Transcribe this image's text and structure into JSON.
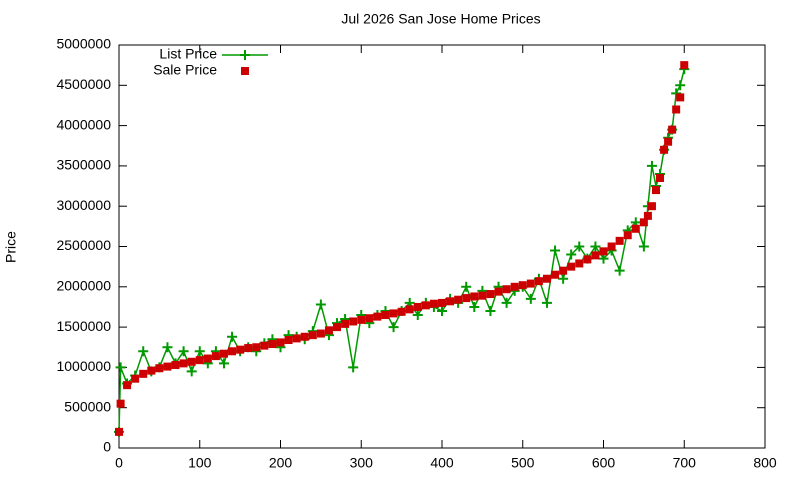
{
  "chart_data": {
    "type": "line",
    "title": "Jul 2026 San Jose Home Prices",
    "y_label": "Price",
    "x": [
      0,
      2,
      10,
      20,
      30,
      40,
      50,
      60,
      70,
      80,
      90,
      100,
      110,
      120,
      130,
      140,
      150,
      160,
      170,
      180,
      190,
      200,
      210,
      220,
      230,
      240,
      250,
      260,
      270,
      280,
      290,
      300,
      310,
      320,
      330,
      340,
      350,
      360,
      370,
      380,
      390,
      400,
      410,
      420,
      430,
      440,
      450,
      460,
      470,
      480,
      490,
      500,
      510,
      520,
      530,
      540,
      550,
      560,
      570,
      580,
      590,
      600,
      610,
      620,
      630,
      640,
      650,
      655,
      660,
      665,
      670,
      675,
      680,
      685,
      690,
      695,
      700
    ],
    "series": [
      {
        "name": "List Price",
        "color": "#009900",
        "marker": "plus",
        "values": [
          200000,
          1000000,
          800000,
          900000,
          1200000,
          950000,
          1000000,
          1250000,
          1050000,
          1200000,
          950000,
          1200000,
          1050000,
          1200000,
          1050000,
          1380000,
          1200000,
          1250000,
          1200000,
          1300000,
          1350000,
          1250000,
          1400000,
          1380000,
          1350000,
          1450000,
          1780000,
          1400000,
          1550000,
          1600000,
          1000000,
          1650000,
          1550000,
          1650000,
          1700000,
          1500000,
          1700000,
          1800000,
          1650000,
          1800000,
          1750000,
          1700000,
          1850000,
          1800000,
          2000000,
          1750000,
          1950000,
          1700000,
          2000000,
          1800000,
          1950000,
          2000000,
          1850000,
          2100000,
          1800000,
          2450000,
          2100000,
          2400000,
          2500000,
          2350000,
          2500000,
          2350000,
          2450000,
          2200000,
          2700000,
          2800000,
          2500000,
          3000000,
          3500000,
          3250000,
          3400000,
          3700000,
          3850000,
          3950000,
          4400000,
          4500000,
          4700000
        ]
      },
      {
        "name": "Sale Price",
        "color": "#cc0000",
        "marker": "square",
        "values": [
          200000,
          550000,
          780000,
          860000,
          920000,
          960000,
          990000,
          1010000,
          1030000,
          1050000,
          1070000,
          1090000,
          1110000,
          1140000,
          1170000,
          1200000,
          1220000,
          1240000,
          1250000,
          1270000,
          1290000,
          1310000,
          1340000,
          1360000,
          1380000,
          1400000,
          1420000,
          1460000,
          1500000,
          1540000,
          1570000,
          1590000,
          1610000,
          1630000,
          1650000,
          1670000,
          1690000,
          1720000,
          1750000,
          1770000,
          1790000,
          1800000,
          1820000,
          1840000,
          1860000,
          1880000,
          1890000,
          1910000,
          1940000,
          1970000,
          2000000,
          2020000,
          2040000,
          2070000,
          2100000,
          2150000,
          2200000,
          2250000,
          2290000,
          2340000,
          2390000,
          2440000,
          2500000,
          2570000,
          2640000,
          2720000,
          2800000,
          2880000,
          3000000,
          3200000,
          3350000,
          3700000,
          3800000,
          3950000,
          4200000,
          4350000,
          4750000
        ]
      }
    ],
    "xlim": [
      0,
      800
    ],
    "xticks": [
      0,
      100,
      200,
      300,
      400,
      500,
      600,
      700,
      800
    ],
    "ylim": [
      0,
      5000000
    ],
    "yticks": [
      0,
      500000,
      1000000,
      1500000,
      2000000,
      2500000,
      3000000,
      3500000,
      4000000,
      4500000,
      5000000
    ],
    "grid": false,
    "legend": "top-left"
  }
}
